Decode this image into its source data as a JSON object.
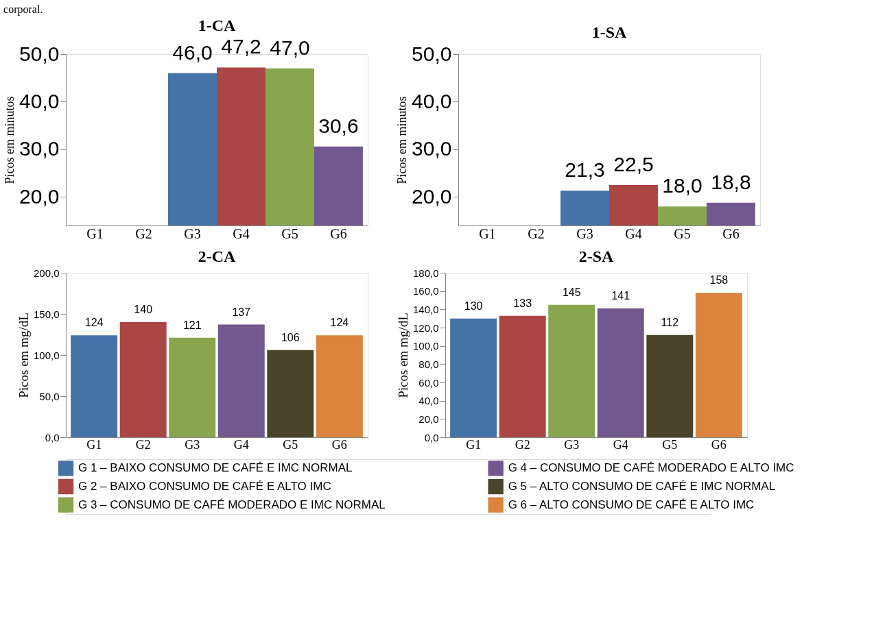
{
  "chart_data": [
    {
      "type": "bar",
      "title": "1-CA",
      "ylabel": "Picos em minutos",
      "categories": [
        "G1",
        "G2",
        "G3",
        "G4",
        "G5",
        "G6"
      ],
      "ylim": [
        14,
        50
      ],
      "yticks": [
        {
          "value": 20,
          "label": "20,0"
        },
        {
          "value": 30,
          "label": "30,0"
        },
        {
          "value": 40,
          "label": "40,0"
        },
        {
          "value": 50,
          "label": "50,0"
        }
      ],
      "grid": false,
      "legend": false,
      "annotations": [
        "corporal."
      ],
      "series": [
        {
          "color": "#4572a7",
          "values": [
            null,
            null,
            46.0,
            null,
            null,
            null
          ],
          "value_labels": [
            null,
            null,
            "46,0",
            null,
            null,
            null
          ]
        },
        {
          "color": "#aa4643",
          "values": [
            null,
            null,
            null,
            47.2,
            null,
            null
          ],
          "value_labels": [
            null,
            null,
            null,
            "47,2",
            null,
            null
          ]
        },
        {
          "color": "#89a54e",
          "values": [
            null,
            null,
            null,
            null,
            47.0,
            null
          ],
          "value_labels": [
            null,
            null,
            null,
            null,
            "47,0",
            null
          ]
        },
        {
          "color": "#71588f",
          "values": [
            null,
            null,
            null,
            null,
            null,
            30.6
          ],
          "value_labels": [
            null,
            null,
            null,
            null,
            null,
            "30,6"
          ]
        }
      ]
    },
    {
      "type": "bar",
      "title": "1-SA",
      "ylabel": "Picos em minutos",
      "categories": [
        "G1",
        "G2",
        "G3",
        "G4",
        "G5",
        "G6"
      ],
      "ylim": [
        14,
        50
      ],
      "yticks": [
        {
          "value": 20,
          "label": "20,0"
        },
        {
          "value": 30,
          "label": "30,0"
        },
        {
          "value": 40,
          "label": "40,0"
        },
        {
          "value": 50,
          "label": "50,0"
        }
      ],
      "grid": false,
      "legend": false,
      "series": [
        {
          "color": "#4572a7",
          "values": [
            null,
            null,
            21.3,
            null,
            null,
            null
          ],
          "value_labels": [
            null,
            null,
            "21,3",
            null,
            null,
            null
          ]
        },
        {
          "color": "#aa4643",
          "values": [
            null,
            null,
            null,
            22.5,
            null,
            null
          ],
          "value_labels": [
            null,
            null,
            null,
            "22,5",
            null,
            null
          ]
        },
        {
          "color": "#89a54e",
          "values": [
            null,
            null,
            null,
            null,
            18.0,
            null
          ],
          "value_labels": [
            null,
            null,
            null,
            null,
            "18,0",
            null
          ]
        },
        {
          "color": "#71588f",
          "values": [
            null,
            null,
            null,
            null,
            null,
            18.8
          ],
          "value_labels": [
            null,
            null,
            null,
            null,
            null,
            "18,8"
          ]
        }
      ]
    },
    {
      "type": "bar",
      "title": "2-CA",
      "ylabel": "Picos em mg/dL",
      "categories": [
        "G1",
        "G2",
        "G3",
        "G4",
        "G5",
        "G6"
      ],
      "ylim": [
        0,
        200
      ],
      "yticks": [
        {
          "value": 0,
          "label": "0,0"
        },
        {
          "value": 50,
          "label": "50,0"
        },
        {
          "value": 100,
          "label": "100,0"
        },
        {
          "value": 150,
          "label": "150,0"
        },
        {
          "value": 200,
          "label": "200,0"
        }
      ],
      "grid": false,
      "legend": "bottom",
      "data_labels": true,
      "series": [
        {
          "name": "G 1 – BAIXO CONSUMO DE CAFÉ E IMC NORMAL",
          "color": "#4572a7",
          "values": [
            124,
            null,
            null,
            null,
            null,
            null
          ]
        },
        {
          "name": "G 2 – BAIXO CONSUMO DE CAFÉ E ALTO IMC",
          "color": "#aa4643",
          "values": [
            null,
            140,
            null,
            null,
            null,
            null
          ]
        },
        {
          "name": "G 3 – CONSUMO DE CAFÉ MODERADO E IMC NORMAL",
          "color": "#89a54e",
          "values": [
            null,
            null,
            121,
            null,
            null,
            null
          ]
        },
        {
          "name": "G 4 – CONSUMO DE CAFÉ MODERADO E ALTO IMC",
          "color": "#71588f",
          "values": [
            null,
            null,
            null,
            137,
            null,
            null
          ]
        },
        {
          "name": "G 5 – ALTO CONSUMO DE CAFÉ E IMC NORMAL",
          "color": "#4a452a",
          "values": [
            null,
            null,
            null,
            null,
            106,
            null
          ]
        },
        {
          "name": "G 6 – ALTO CONSUMO DE CAFÉ E ALTO IMC",
          "color": "#db843d",
          "values": [
            null,
            null,
            null,
            null,
            null,
            124
          ]
        }
      ]
    },
    {
      "type": "bar",
      "title": "2-SA",
      "ylabel": "Picos em mg/dL",
      "categories": [
        "G1",
        "G2",
        "G3",
        "G4",
        "G5",
        "G6"
      ],
      "ylim": [
        0,
        180
      ],
      "yticks": [
        {
          "value": 0,
          "label": "0,0"
        },
        {
          "value": 20,
          "label": "20,0"
        },
        {
          "value": 40,
          "label": "40,0"
        },
        {
          "value": 60,
          "label": "60,0"
        },
        {
          "value": 80,
          "label": "80,0"
        },
        {
          "value": 100,
          "label": "100,0"
        },
        {
          "value": 120,
          "label": "120,0"
        },
        {
          "value": 140,
          "label": "140,0"
        },
        {
          "value": 160,
          "label": "160,0"
        },
        {
          "value": 180,
          "label": "180,0"
        }
      ],
      "grid": false,
      "legend": false,
      "data_labels": true,
      "series": [
        {
          "color": "#4572a7",
          "values": [
            130,
            null,
            null,
            null,
            null,
            null
          ]
        },
        {
          "color": "#aa4643",
          "values": [
            null,
            133,
            null,
            null,
            null,
            null
          ]
        },
        {
          "color": "#89a54e",
          "values": [
            null,
            null,
            145,
            null,
            null,
            null
          ]
        },
        {
          "color": "#71588f",
          "values": [
            null,
            null,
            null,
            141,
            null,
            null
          ]
        },
        {
          "color": "#4a452a",
          "values": [
            null,
            null,
            null,
            null,
            112,
            null
          ]
        },
        {
          "color": "#db843d",
          "values": [
            null,
            null,
            null,
            null,
            null,
            158
          ]
        }
      ]
    }
  ]
}
